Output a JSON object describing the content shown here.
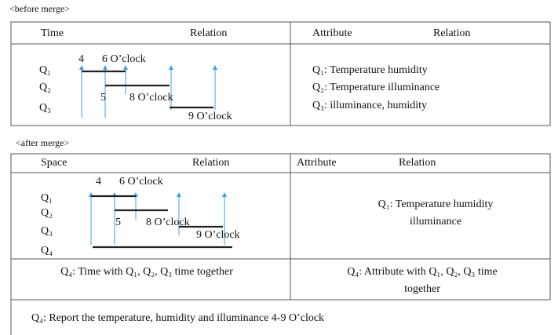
{
  "before": {
    "label": "<before merge>",
    "headers": [
      "Time",
      "Relation",
      "Attribute",
      "Relation"
    ],
    "rows": [
      "Q₁",
      "Q₂",
      "Q₃"
    ],
    "time_labels": [
      "4",
      "6 O’clock",
      "5",
      "8 O’clock",
      "9 O’clock"
    ],
    "attributes": [
      "Q₁: Temperature humidity",
      "Q₂: Temperature illuminance",
      "Q₃: illuminance, humidity"
    ]
  },
  "after": {
    "label": "<after merge>",
    "headers": [
      "Space",
      "Relation",
      "Attribute",
      "Relation"
    ],
    "rows": [
      "Q₁",
      "Q₂",
      "Q₃",
      "Q₄"
    ],
    "time_labels": [
      "4",
      "6 O’clock",
      "5",
      "8 O’clock",
      "9 O’clock"
    ],
    "attributes": [
      "Q₁: Temperature humidity",
      "illuminance"
    ],
    "time_summary": "Q₄: Time with Q₁, Q₂, Q₃ time together",
    "attribute_summary": [
      "Q₄: Attribute with Q₁, Q₂, Q₃ time",
      "together"
    ],
    "report": "Q₄: Report the temperature, humidity and illuminance 4-9 O’clock"
  }
}
